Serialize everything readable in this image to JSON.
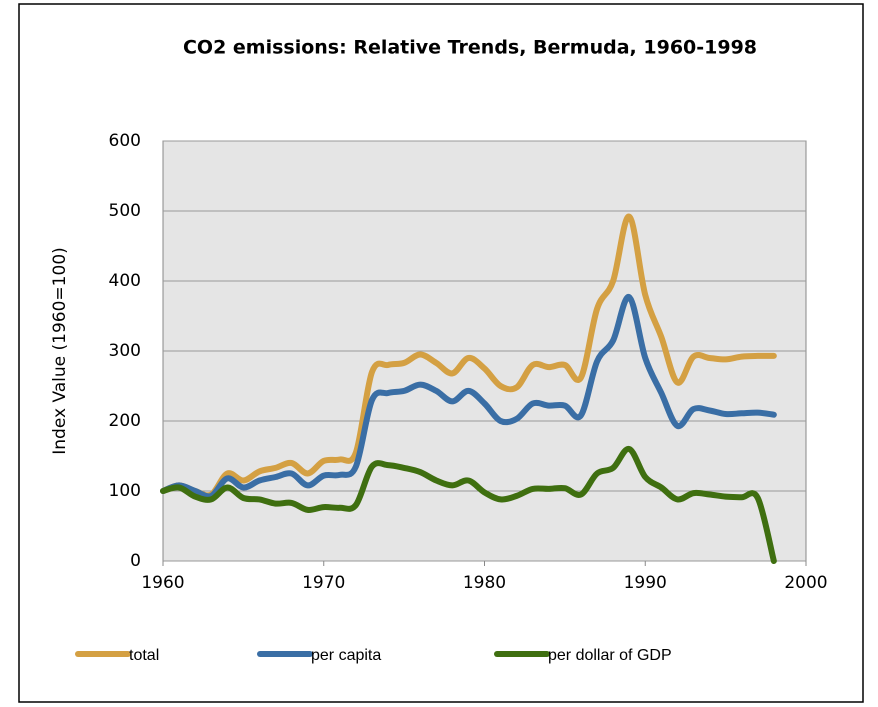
{
  "chart_data": {
    "type": "line",
    "title": "CO2 emissions: Relative Trends, Bermuda, 1960-1998",
    "y_label": "Index Value (1960=100)",
    "x": [
      1960,
      1961,
      1962,
      1963,
      1964,
      1965,
      1966,
      1967,
      1968,
      1969,
      1970,
      1971,
      1972,
      1973,
      1974,
      1975,
      1976,
      1977,
      1978,
      1979,
      1980,
      1981,
      1982,
      1983,
      1984,
      1985,
      1986,
      1987,
      1988,
      1989,
      1990,
      1991,
      1992,
      1993,
      1994,
      1995,
      1996,
      1997,
      1998
    ],
    "series": [
      {
        "name": "total",
        "color": "#d4a043",
        "values": [
          100,
          108,
          100,
          95,
          125,
          115,
          128,
          133,
          140,
          125,
          143,
          145,
          155,
          270,
          280,
          283,
          295,
          283,
          268,
          290,
          275,
          250,
          248,
          280,
          277,
          280,
          262,
          360,
          400,
          492,
          380,
          320,
          255,
          292,
          290,
          288,
          292,
          293,
          293
        ]
      },
      {
        "name": "per capita",
        "color": "#3a6ea5",
        "values": [
          100,
          108,
          100,
          93,
          118,
          105,
          115,
          120,
          125,
          108,
          122,
          123,
          135,
          230,
          240,
          243,
          252,
          243,
          228,
          243,
          225,
          200,
          203,
          225,
          222,
          222,
          208,
          285,
          315,
          377,
          290,
          240,
          193,
          217,
          215,
          210,
          211,
          212,
          209
        ]
      },
      {
        "name": "per dollar of GDP",
        "color": "#3f6f10",
        "values": [
          100,
          105,
          92,
          88,
          105,
          90,
          88,
          82,
          83,
          73,
          77,
          76,
          80,
          135,
          137,
          133,
          127,
          115,
          108,
          115,
          98,
          88,
          93,
          103,
          103,
          104,
          95,
          125,
          133,
          160,
          120,
          105,
          88,
          97,
          95,
          92,
          91,
          90,
          0
        ]
      }
    ],
    "xlim": [
      1960,
      2000
    ],
    "xticks": [
      1960,
      1970,
      1980,
      1990,
      2000
    ],
    "ylim": [
      0,
      600
    ],
    "yticks": [
      0,
      100,
      200,
      300,
      400,
      500,
      600
    ],
    "grid": true
  }
}
